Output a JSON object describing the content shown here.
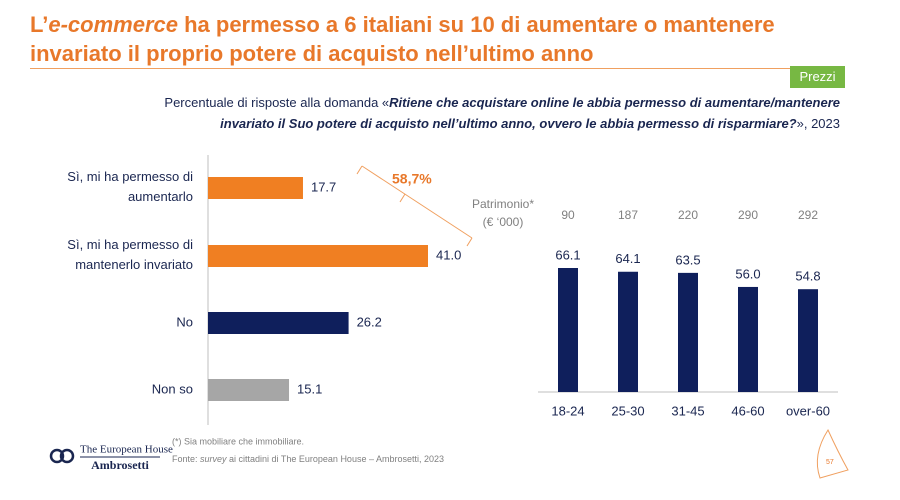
{
  "title": {
    "line1": [
      "L’",
      "e-commerce",
      " ha permesso a 6 italiani su 10 di aumentare o mantenere"
    ],
    "line2": "invariato il proprio potere di acquisto nell’ultimo anno"
  },
  "tag": "Prezzi",
  "subtitle": {
    "intro": "Percentuale di risposte alla domanda «",
    "question_line1": "Ritiene che acquistare online le abbia permesso di aumentare/mantenere",
    "question_line2": "invariato il Suo potere di acquisto nell’ultimo anno, ovvero le abbia permesso di risparmiare?",
    "outro": "», 2023"
  },
  "chart_data": [
    {
      "type": "hbar",
      "categories": [
        "Sì, mi ha permesso di aumentarlo",
        "Sì, mi ha permesso di mantenerlo invariato",
        "No",
        "Non so"
      ],
      "values": [
        17.7,
        41.0,
        26.2,
        15.1
      ],
      "value_labels": [
        "17.7",
        "41.0",
        "26.2",
        "15.1"
      ],
      "colors": [
        "#f07f22",
        "#f07f22",
        "#0f1f5c",
        "#a6a6a6"
      ],
      "annotation": "58,7%"
    },
    {
      "type": "bar",
      "categories": [
        "18-24",
        "25-30",
        "31-45",
        "46-60",
        "over-60"
      ],
      "values": [
        66.1,
        64.1,
        63.5,
        56.0,
        54.8
      ],
      "value_labels": [
        "66.1",
        "64.1",
        "63.5",
        "56.0",
        "54.8"
      ],
      "color": "#0f1f5c",
      "patrimonio": {
        "label": "Patrimonio*",
        "unit": "(€ ‘000)",
        "values": [
          90,
          187,
          220,
          290,
          292
        ]
      }
    }
  ],
  "footnotes": [
    "(*) Sia mobiliare che immobiliare.",
    [
      "Fonte: ",
      "survey",
      " ai cittadini di The European House – Ambrosetti, 2023"
    ]
  ],
  "logo": [
    "The European House",
    "Ambrosetti"
  ],
  "page_number": 57
}
